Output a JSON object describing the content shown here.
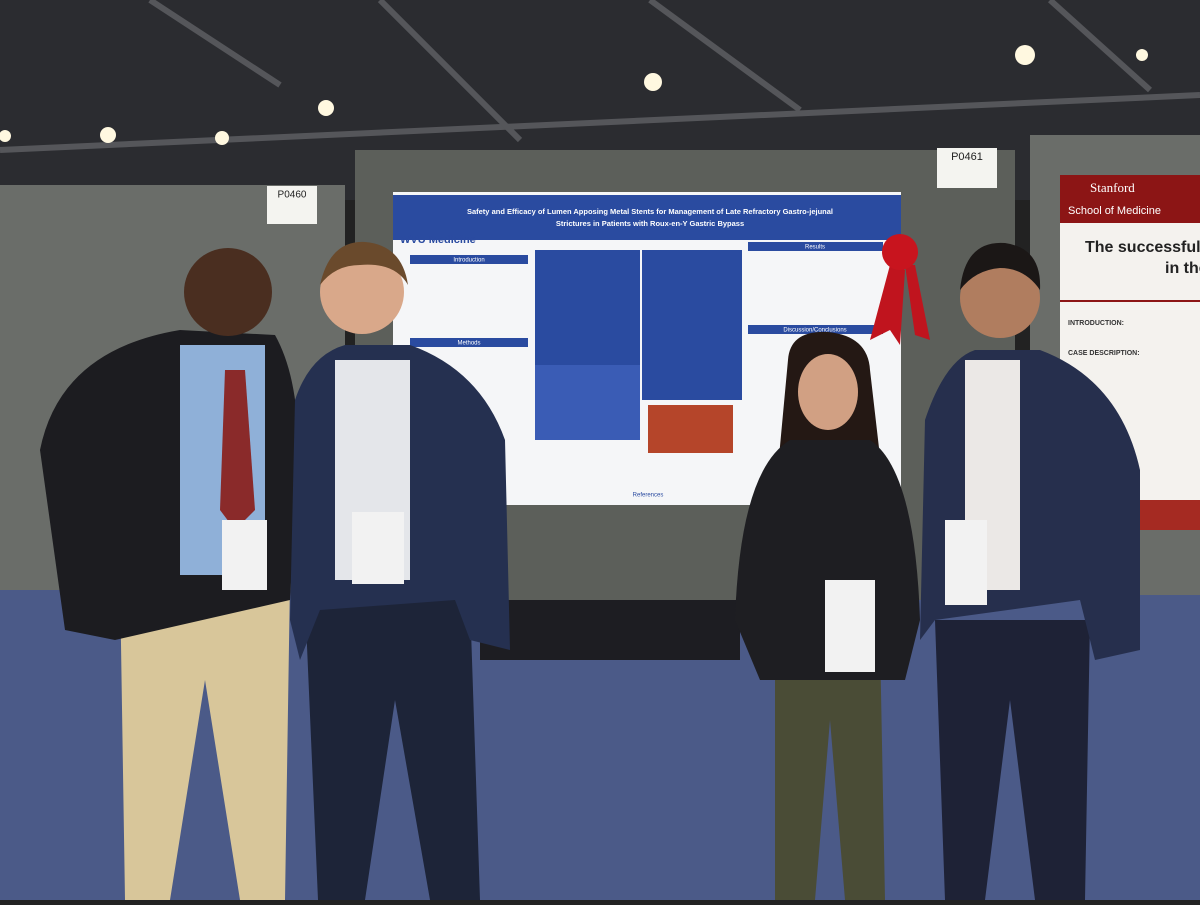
{
  "booths": [
    {
      "number": "P0460"
    },
    {
      "number": "P0461"
    }
  ],
  "poster": {
    "logo": "WVU Medicine",
    "title_lines": [
      "Safety and Efficacy of Lumen Apposing Metal Stents for Management of Late Refractory Gastro-jejunal",
      "Strictures in Patients with Roux-en-Y Gastric Bypass"
    ],
    "sections": [
      "Introduction",
      "Methods",
      "Results",
      "Discussion/Conclusions",
      "References"
    ]
  },
  "stanford_poster": {
    "brand": "Stanford",
    "school": "School of Medicine",
    "title_lines": [
      "The successful use",
      "in the"
    ],
    "headings": [
      "INTRODUCTION:",
      "CASE DESCRIPTION:"
    ]
  }
}
